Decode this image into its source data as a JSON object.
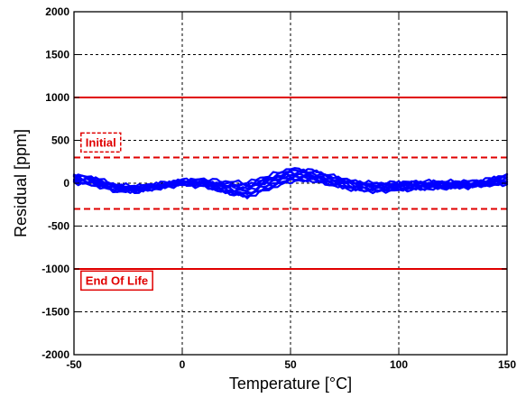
{
  "chart_data": {
    "type": "line",
    "title": "",
    "xlabel": "Temperature [°C]",
    "ylabel": "Residual [ppm]",
    "xlim": [
      -50,
      150
    ],
    "ylim": [
      -2000,
      2000
    ],
    "grid": true,
    "x_ticks": [
      -50,
      0,
      50,
      100,
      150
    ],
    "y_ticks": [
      -2000,
      -1500,
      -1000,
      -500,
      0,
      500,
      1000,
      1500,
      2000
    ],
    "x_tick_labels": [
      "-50",
      "0",
      "50",
      "100",
      "150"
    ],
    "y_tick_labels": [
      "-2000",
      "-1500",
      "-1000",
      "-500",
      "0",
      "500",
      "1000",
      "1500",
      "2000"
    ],
    "colors": {
      "series": "#0000ff",
      "limits": "#e00000",
      "grid": "#000000"
    },
    "reference_lines": [
      {
        "y": 1000,
        "style": "solid",
        "group": "End Of Life"
      },
      {
        "y": -1000,
        "style": "solid",
        "group": "End Of Life"
      },
      {
        "y": 300,
        "style": "dashed",
        "group": "Initial"
      },
      {
        "y": -300,
        "style": "dashed",
        "group": "Initial"
      }
    ],
    "annotations": [
      {
        "text": "Initial",
        "box_style": "dashed",
        "x": -48,
        "y": 480
      },
      {
        "text": "End Of Life",
        "box_style": "solid",
        "x": -48,
        "y": -1130
      }
    ],
    "x": [
      -50,
      -40,
      -30,
      -20,
      -10,
      0,
      10,
      20,
      30,
      40,
      50,
      60,
      70,
      80,
      90,
      100,
      110,
      120,
      130,
      140,
      150
    ],
    "series": [
      {
        "values": [
          80,
          40,
          -40,
          -50,
          -20,
          20,
          10,
          -40,
          -60,
          30,
          120,
          110,
          40,
          -20,
          -30,
          -20,
          -10,
          -10,
          -10,
          10,
          60
        ]
      },
      {
        "values": [
          60,
          20,
          -60,
          -70,
          -30,
          10,
          0,
          -60,
          -90,
          10,
          100,
          90,
          20,
          -40,
          -50,
          -30,
          -30,
          -20,
          -20,
          0,
          40
        ]
      },
      {
        "values": [
          40,
          0,
          -80,
          -80,
          -40,
          0,
          -10,
          -80,
          -120,
          -20,
          70,
          70,
          0,
          -50,
          -70,
          -50,
          -40,
          -30,
          -30,
          -10,
          20
        ]
      },
      {
        "values": [
          100,
          60,
          -20,
          -30,
          0,
          40,
          30,
          -20,
          -30,
          60,
          150,
          140,
          70,
          0,
          -10,
          0,
          10,
          10,
          10,
          30,
          90
        ]
      },
      {
        "values": [
          20,
          -20,
          -90,
          -90,
          -50,
          -10,
          -30,
          -100,
          -150,
          -50,
          40,
          40,
          -20,
          -70,
          -90,
          -70,
          -60,
          -50,
          -40,
          -20,
          0
        ]
      },
      {
        "values": [
          90,
          50,
          -30,
          -40,
          -10,
          30,
          50,
          20,
          10,
          90,
          170,
          150,
          80,
          20,
          0,
          10,
          20,
          20,
          20,
          40,
          100
        ]
      },
      {
        "values": [
          50,
          10,
          -50,
          -60,
          -30,
          10,
          10,
          -30,
          -50,
          20,
          90,
          80,
          30,
          -10,
          -40,
          -30,
          -20,
          -20,
          -20,
          0,
          50
        ]
      },
      {
        "values": [
          30,
          -10,
          -70,
          -80,
          -40,
          0,
          -20,
          -90,
          -130,
          -40,
          50,
          60,
          -10,
          -60,
          -80,
          -60,
          -50,
          -40,
          -40,
          -20,
          10
        ]
      },
      {
        "values": [
          70,
          30,
          -40,
          -50,
          -20,
          20,
          20,
          -10,
          -20,
          50,
          130,
          120,
          60,
          10,
          -20,
          -10,
          0,
          0,
          0,
          20,
          70
        ]
      },
      {
        "values": [
          10,
          -30,
          -100,
          -100,
          -60,
          -20,
          -40,
          -110,
          -160,
          -70,
          20,
          30,
          -30,
          -80,
          -100,
          -80,
          -70,
          -60,
          -50,
          -30,
          -10
        ]
      }
    ]
  }
}
